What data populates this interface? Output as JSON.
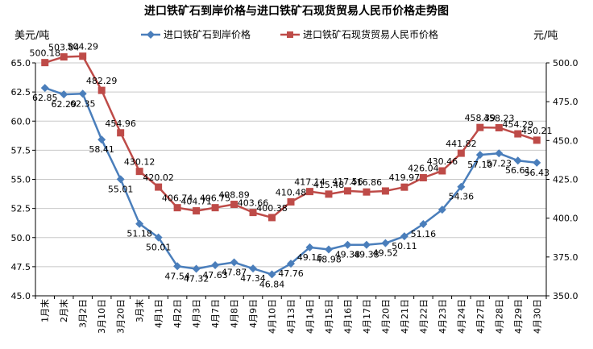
{
  "chart_data": {
    "type": "line",
    "title": "进口铁矿石到岸价格与进口铁矿石现货贸易人民币价格走势图",
    "left_axis_label": "美元/吨",
    "right_axis_label": "元/吨",
    "categories": [
      "1月末",
      "2月末",
      "3月2日",
      "3月10日",
      "3月20日",
      "3月末",
      "4月1日",
      "4月2日",
      "4月3日",
      "4月7日",
      "4月8日",
      "4月9日",
      "4月10日",
      "4月13日",
      "4月14日",
      "4月15日",
      "4月16日",
      "4月17日",
      "4月20日",
      "4月21日",
      "4月22日",
      "4月23日",
      "4月24日",
      "4月27日",
      "4月28日",
      "4月29日",
      "4月30日"
    ],
    "left_ylim": [
      45.0,
      65.0
    ],
    "left_ticks": [
      "45.0",
      "47.5",
      "50.0",
      "52.5",
      "55.0",
      "57.5",
      "60.0",
      "62.5",
      "65.0"
    ],
    "right_ylim": [
      350.0,
      500.0
    ],
    "right_ticks": [
      "350.0",
      "375.0",
      "400.0",
      "425.0",
      "450.0",
      "475.0",
      "500.0"
    ],
    "grid": true,
    "legend_position": "top-center",
    "series": [
      {
        "name": "进口铁矿石到岸价格",
        "axis": "left",
        "color": "#4a7ebb",
        "marker": "diamond",
        "values": [
          62.85,
          62.29,
          62.35,
          58.41,
          55.01,
          51.18,
          50.01,
          47.54,
          47.32,
          47.63,
          47.87,
          47.34,
          46.84,
          47.76,
          49.16,
          48.98,
          49.38,
          49.38,
          49.52,
          50.11,
          51.16,
          52.4,
          54.36,
          57.1,
          57.23,
          56.61,
          56.43
        ],
        "labels": [
          "62.85",
          "62.29",
          "62.35",
          "58.41",
          "55.01",
          "51.18",
          "50.01",
          "47.54",
          "47.32",
          "47.63",
          "47.87",
          "47.34",
          "46.84",
          "47.76",
          "49.16",
          "48.98",
          "49.38",
          "49.38",
          "49.52",
          "50.11",
          "51.16",
          "",
          "54.36",
          "57.10",
          "57.23",
          "56.61",
          "56.43"
        ]
      },
      {
        "name": "进口铁矿石现货贸易人民币价格",
        "axis": "right",
        "color": "#be4b48",
        "marker": "square",
        "values": [
          500.18,
          503.84,
          504.29,
          482.29,
          454.96,
          430.12,
          420.02,
          406.74,
          404.71,
          406.75,
          408.89,
          403.66,
          400.38,
          410.48,
          417.14,
          415.48,
          417.56,
          416.86,
          417.5,
          419.97,
          426.04,
          430.46,
          441.82,
          458.39,
          458.23,
          454.29,
          450.21
        ],
        "labels": [
          "500.18",
          "503.84",
          "504.29",
          "482.29",
          "454.96",
          "430.12",
          "420.02",
          "406.74",
          "404.71",
          "406.75",
          "408.89",
          "403.66",
          "400.38",
          "410.48",
          "417.14",
          "415.48",
          "417.56",
          "416.86",
          "",
          "419.97",
          "426.04",
          "430.46",
          "441.82",
          "458.39",
          "458.23",
          "454.29",
          "450.21"
        ]
      }
    ]
  }
}
